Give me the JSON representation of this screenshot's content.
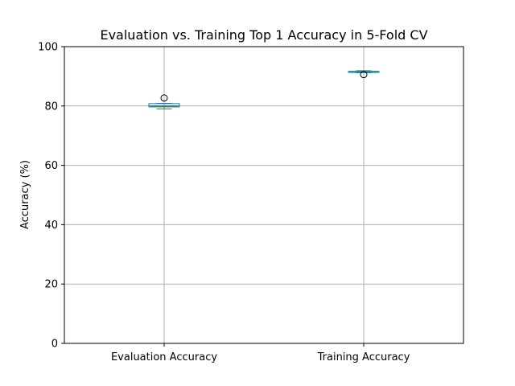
{
  "chart_data": {
    "type": "box",
    "title": "Evaluation vs. Training Top 1 Accuracy in 5-Fold CV",
    "xlabel": "",
    "ylabel": "Accuracy (%)",
    "ylim": [
      0,
      100
    ],
    "yticks": [
      0,
      20,
      40,
      60,
      80,
      100
    ],
    "ytick_labels": [
      "0",
      "20",
      "40",
      "60",
      "80",
      "100"
    ],
    "grid": true,
    "categories": [
      "Evaluation Accuracy",
      "Training Accuracy"
    ],
    "boxes": [
      {
        "category": "Evaluation Accuracy",
        "whisker_low": 79.0,
        "q1": 79.7,
        "median": 80.0,
        "q3": 80.8,
        "whisker_high": 80.9,
        "outliers": [
          82.7
        ]
      },
      {
        "category": "Training Accuracy",
        "whisker_low": 91.2,
        "q1": 91.3,
        "median": 91.5,
        "q3": 91.7,
        "whisker_high": 91.9,
        "outliers": [
          90.6
        ]
      }
    ],
    "colors": {
      "box": "#1f77b4",
      "median": "#2ca02c",
      "grid": "#b0b0b0",
      "axis": "#000000"
    }
  }
}
